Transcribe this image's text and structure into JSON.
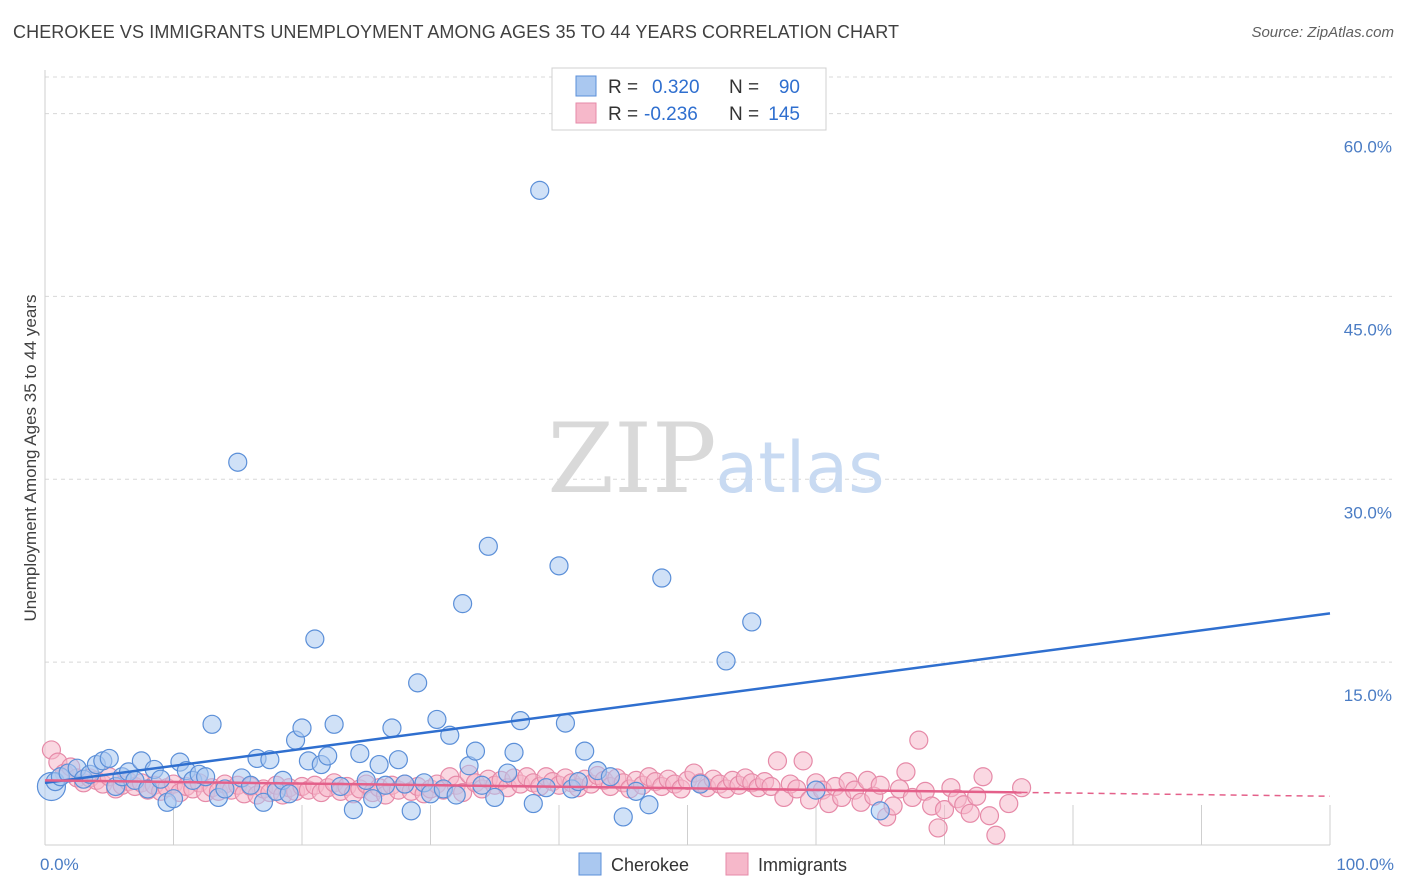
{
  "title": "CHEROKEE VS IMMIGRANTS UNEMPLOYMENT AMONG AGES 35 TO 44 YEARS CORRELATION CHART",
  "source": "Source: ZipAtlas.com",
  "watermark": {
    "zip": "ZIP",
    "atlas": "atlas"
  },
  "colors": {
    "cherokee_fill": "#aac8f0",
    "cherokee_stroke": "#5b8fd8",
    "cherokee_line": "#2f6fcf",
    "immigrants_fill": "#f6b8ca",
    "immigrants_stroke": "#e68aa8",
    "immigrants_line": "#e4608a",
    "tick_text": "#4a7cc4",
    "grid": "#d8d8d8"
  },
  "legend_top": [
    {
      "r_label": "R =",
      "r_value": "0.320",
      "n_label": "N =",
      "n_value": "90"
    },
    {
      "r_label": "R =",
      "r_value": "-0.236",
      "n_label": "N =",
      "n_value": "145"
    }
  ],
  "chart_data": {
    "type": "scatter",
    "title": "CHEROKEE VS IMMIGRANTS UNEMPLOYMENT AMONG AGES 35 TO 44 YEARS CORRELATION CHART",
    "xlabel": "",
    "ylabel": "Unemployment Among Ages 35 to 44 years",
    "xlim": [
      0,
      100
    ],
    "ylim": [
      0,
      63
    ],
    "x_tick_labels": [
      {
        "value": 0,
        "label": "0.0%"
      },
      {
        "value": 100,
        "label": "100.0%"
      }
    ],
    "y_ticks": [
      {
        "value": 15,
        "label": "15.0%"
      },
      {
        "value": 30,
        "label": "30.0%"
      },
      {
        "value": 45,
        "label": "45.0%"
      },
      {
        "value": 60,
        "label": "60.0%"
      }
    ],
    "grid": true,
    "legend_placement": "bottom-center",
    "series": [
      {
        "name": "Cherokee",
        "r": 0.32,
        "n": 90,
        "trend": {
          "x": [
            0,
            100
          ],
          "y": [
            5.1,
            19.0
          ],
          "dashed_from": null
        },
        "points": [
          [
            0.5,
            4.8
          ],
          [
            0.8,
            5.2
          ],
          [
            1.2,
            5.6
          ],
          [
            1.8,
            5.9
          ],
          [
            2.5,
            6.3
          ],
          [
            3,
            5.4
          ],
          [
            3.5,
            5.8
          ],
          [
            4,
            6.6
          ],
          [
            4.5,
            6.9
          ],
          [
            5,
            7.1
          ],
          [
            5.5,
            4.8
          ],
          [
            6,
            5.6
          ],
          [
            6.5,
            6.0
          ],
          [
            7,
            5.3
          ],
          [
            7.5,
            6.9
          ],
          [
            8,
            4.6
          ],
          [
            8.5,
            6.2
          ],
          [
            9,
            5.4
          ],
          [
            9.5,
            3.5
          ],
          [
            10,
            3.8
          ],
          [
            10.5,
            6.8
          ],
          [
            11,
            6.1
          ],
          [
            11.5,
            5.3
          ],
          [
            12,
            5.8
          ],
          [
            12.5,
            5.6
          ],
          [
            13,
            9.9
          ],
          [
            13.5,
            3.9
          ],
          [
            14,
            4.6
          ],
          [
            15,
            31.4
          ],
          [
            15.3,
            5.5
          ],
          [
            16,
            4.9
          ],
          [
            16.5,
            7.1
          ],
          [
            17,
            3.5
          ],
          [
            17.5,
            7.0
          ],
          [
            18,
            4.4
          ],
          [
            18.5,
            5.3
          ],
          [
            19,
            4.2
          ],
          [
            19.5,
            8.6
          ],
          [
            20,
            9.6
          ],
          [
            20.5,
            6.9
          ],
          [
            21,
            16.9
          ],
          [
            21.5,
            6.6
          ],
          [
            22,
            7.3
          ],
          [
            22.5,
            9.9
          ],
          [
            23,
            4.8
          ],
          [
            24,
            2.9
          ],
          [
            24.5,
            7.5
          ],
          [
            25,
            5.3
          ],
          [
            25.5,
            3.8
          ],
          [
            26,
            6.6
          ],
          [
            26.5,
            4.9
          ],
          [
            27,
            9.6
          ],
          [
            27.5,
            7.0
          ],
          [
            28,
            5.0
          ],
          [
            28.5,
            2.8
          ],
          [
            29,
            13.3
          ],
          [
            29.5,
            5.1
          ],
          [
            30,
            4.2
          ],
          [
            30.5,
            10.3
          ],
          [
            31,
            4.6
          ],
          [
            31.5,
            9.0
          ],
          [
            32,
            4.1
          ],
          [
            32.5,
            19.8
          ],
          [
            33,
            6.5
          ],
          [
            33.5,
            7.7
          ],
          [
            34,
            4.9
          ],
          [
            34.5,
            24.5
          ],
          [
            35,
            3.9
          ],
          [
            36,
            5.9
          ],
          [
            36.5,
            7.6
          ],
          [
            37,
            10.2
          ],
          [
            38,
            3.4
          ],
          [
            38.5,
            53.7
          ],
          [
            39,
            4.7
          ],
          [
            40,
            22.9
          ],
          [
            40.5,
            10.0
          ],
          [
            41,
            4.6
          ],
          [
            41.5,
            5.2
          ],
          [
            42,
            7.7
          ],
          [
            43,
            6.1
          ],
          [
            44,
            5.6
          ],
          [
            45,
            2.3
          ],
          [
            46,
            4.4
          ],
          [
            47,
            3.3
          ],
          [
            48,
            21.9
          ],
          [
            51,
            5.0
          ],
          [
            53,
            15.1
          ],
          [
            55,
            18.3
          ],
          [
            60,
            4.5
          ],
          [
            65,
            2.8
          ]
        ]
      },
      {
        "name": "Immigrants",
        "r": -0.236,
        "n": 145,
        "trend": {
          "x": [
            0,
            100
          ],
          "y": [
            5.3,
            4.0
          ],
          "dashed_from": 76
        },
        "points": [
          [
            0.5,
            7.8
          ],
          [
            1,
            6.8
          ],
          [
            1.5,
            5.9
          ],
          [
            2,
            6.4
          ],
          [
            2.5,
            5.5
          ],
          [
            3,
            5.1
          ],
          [
            3.5,
            5.5
          ],
          [
            4,
            5.3
          ],
          [
            4.5,
            5.0
          ],
          [
            5,
            5.6
          ],
          [
            5.5,
            4.6
          ],
          [
            6,
            4.9
          ],
          [
            6.5,
            5.2
          ],
          [
            7,
            4.8
          ],
          [
            7.5,
            5.1
          ],
          [
            8,
            4.5
          ],
          [
            8.5,
            4.9
          ],
          [
            9,
            4.4
          ],
          [
            9.5,
            4.7
          ],
          [
            10,
            5.0
          ],
          [
            10.5,
            4.3
          ],
          [
            11,
            4.8
          ],
          [
            11.5,
            4.6
          ],
          [
            12,
            5.1
          ],
          [
            12.5,
            4.3
          ],
          [
            13,
            4.7
          ],
          [
            13.5,
            4.4
          ],
          [
            14,
            5.0
          ],
          [
            14.5,
            4.5
          ],
          [
            15,
            4.9
          ],
          [
            15.5,
            4.2
          ],
          [
            16,
            4.8
          ],
          [
            16.5,
            4.1
          ],
          [
            17,
            4.6
          ],
          [
            17.5,
            4.3
          ],
          [
            18,
            4.9
          ],
          [
            18.5,
            4.1
          ],
          [
            19,
            4.7
          ],
          [
            19.5,
            4.4
          ],
          [
            20,
            4.8
          ],
          [
            20.5,
            4.5
          ],
          [
            21,
            4.9
          ],
          [
            21.5,
            4.3
          ],
          [
            22,
            4.7
          ],
          [
            22.5,
            5.1
          ],
          [
            23,
            4.4
          ],
          [
            23.5,
            4.8
          ],
          [
            24,
            4.2
          ],
          [
            24.5,
            4.6
          ],
          [
            25,
            5.0
          ],
          [
            25.5,
            4.3
          ],
          [
            26,
            4.7
          ],
          [
            26.5,
            4.1
          ],
          [
            27,
            4.9
          ],
          [
            27.5,
            4.5
          ],
          [
            28,
            5.0
          ],
          [
            28.5,
            4.4
          ],
          [
            29,
            4.8
          ],
          [
            29.5,
            4.2
          ],
          [
            30,
            4.6
          ],
          [
            30.5,
            5.0
          ],
          [
            31,
            4.5
          ],
          [
            31.5,
            5.6
          ],
          [
            32,
            4.9
          ],
          [
            32.5,
            4.3
          ],
          [
            33,
            5.8
          ],
          [
            33.5,
            5.1
          ],
          [
            34,
            4.6
          ],
          [
            34.5,
            5.4
          ],
          [
            35,
            4.9
          ],
          [
            35.5,
            5.3
          ],
          [
            36,
            4.7
          ],
          [
            36.5,
            5.5
          ],
          [
            37,
            5.0
          ],
          [
            37.5,
            5.6
          ],
          [
            38,
            5.1
          ],
          [
            38.5,
            4.8
          ],
          [
            39,
            5.6
          ],
          [
            39.5,
            5.2
          ],
          [
            40,
            4.9
          ],
          [
            40.5,
            5.5
          ],
          [
            41,
            5.1
          ],
          [
            41.5,
            4.7
          ],
          [
            42,
            5.4
          ],
          [
            42.5,
            5.0
          ],
          [
            43,
            5.7
          ],
          [
            43.5,
            5.3
          ],
          [
            44,
            4.8
          ],
          [
            44.5,
            5.5
          ],
          [
            45,
            5.1
          ],
          [
            45.5,
            4.6
          ],
          [
            46,
            5.3
          ],
          [
            46.5,
            4.9
          ],
          [
            47,
            5.6
          ],
          [
            47.5,
            5.2
          ],
          [
            48,
            4.8
          ],
          [
            48.5,
            5.4
          ],
          [
            49,
            5.0
          ],
          [
            49.5,
            4.6
          ],
          [
            50,
            5.3
          ],
          [
            50.5,
            5.9
          ],
          [
            51,
            5.1
          ],
          [
            51.5,
            4.7
          ],
          [
            52,
            5.4
          ],
          [
            52.5,
            5.0
          ],
          [
            53,
            4.6
          ],
          [
            53.5,
            5.3
          ],
          [
            54,
            4.9
          ],
          [
            54.5,
            5.5
          ],
          [
            55,
            5.1
          ],
          [
            55.5,
            4.7
          ],
          [
            56,
            5.2
          ],
          [
            56.5,
            4.8
          ],
          [
            57,
            6.9
          ],
          [
            57.5,
            3.9
          ],
          [
            58,
            5.0
          ],
          [
            58.5,
            4.6
          ],
          [
            59,
            6.9
          ],
          [
            59.5,
            3.7
          ],
          [
            60,
            5.1
          ],
          [
            60.5,
            4.5
          ],
          [
            61,
            3.4
          ],
          [
            61.5,
            4.8
          ],
          [
            62,
            3.9
          ],
          [
            62.5,
            5.2
          ],
          [
            63,
            4.5
          ],
          [
            63.5,
            3.5
          ],
          [
            64,
            5.3
          ],
          [
            64.5,
            4.0
          ],
          [
            65,
            4.9
          ],
          [
            65.5,
            2.3
          ],
          [
            66,
            3.2
          ],
          [
            66.5,
            4.6
          ],
          [
            67,
            6.0
          ],
          [
            67.5,
            3.9
          ],
          [
            68,
            8.6
          ],
          [
            68.5,
            4.4
          ],
          [
            69,
            3.2
          ],
          [
            69.5,
            1.4
          ],
          [
            70,
            2.9
          ],
          [
            70.5,
            4.7
          ],
          [
            71,
            3.8
          ],
          [
            71.5,
            3.3
          ],
          [
            72,
            2.6
          ],
          [
            72.5,
            4.0
          ],
          [
            73,
            5.6
          ],
          [
            73.5,
            2.4
          ],
          [
            74,
            0.8
          ],
          [
            75,
            3.4
          ],
          [
            76,
            4.7
          ]
        ]
      }
    ]
  },
  "bottom_legend": [
    {
      "label": "Cherokee"
    },
    {
      "label": "Immigrants"
    }
  ]
}
